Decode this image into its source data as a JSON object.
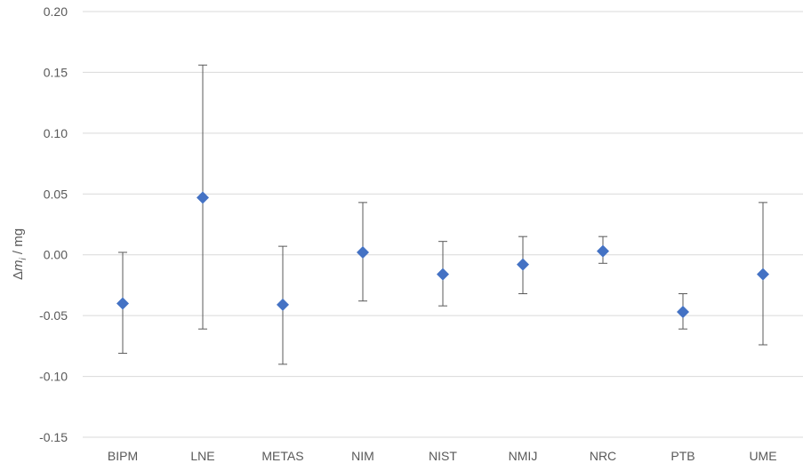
{
  "chart_data": {
    "type": "scatter",
    "error_bars": true,
    "title": "",
    "xlabel": "",
    "ylabel": {
      "prefix": "Δ",
      "symbol": "m",
      "subscript": "i",
      "suffix": " / mg"
    },
    "ylim": [
      -0.15,
      0.2
    ],
    "y_ticks": [
      "0.20",
      "0.15",
      "0.10",
      "0.05",
      "0.00",
      "-0.05",
      "-0.10",
      "-0.15"
    ],
    "y_tick_values": [
      0.2,
      0.15,
      0.1,
      0.05,
      0.0,
      -0.05,
      -0.1,
      -0.15
    ],
    "grid": "horizontal",
    "legend": "none",
    "marker": "diamond",
    "marker_color": "#4472C4",
    "errorbar_color": "#595959",
    "gridline_color": "#D9D9D9",
    "categories": [
      "BIPM",
      "LNE",
      "METAS",
      "NIM",
      "NIST",
      "NMIJ",
      "NRC",
      "PTB",
      "UME"
    ],
    "values": [
      -0.04,
      0.047,
      -0.041,
      0.002,
      -0.016,
      -0.008,
      0.003,
      -0.047,
      -0.016
    ],
    "error_low": [
      -0.081,
      -0.061,
      -0.09,
      -0.038,
      -0.042,
      -0.032,
      -0.007,
      -0.061,
      -0.074
    ],
    "error_high": [
      0.002,
      0.156,
      0.007,
      0.043,
      0.011,
      0.015,
      0.015,
      -0.032,
      0.043
    ]
  }
}
